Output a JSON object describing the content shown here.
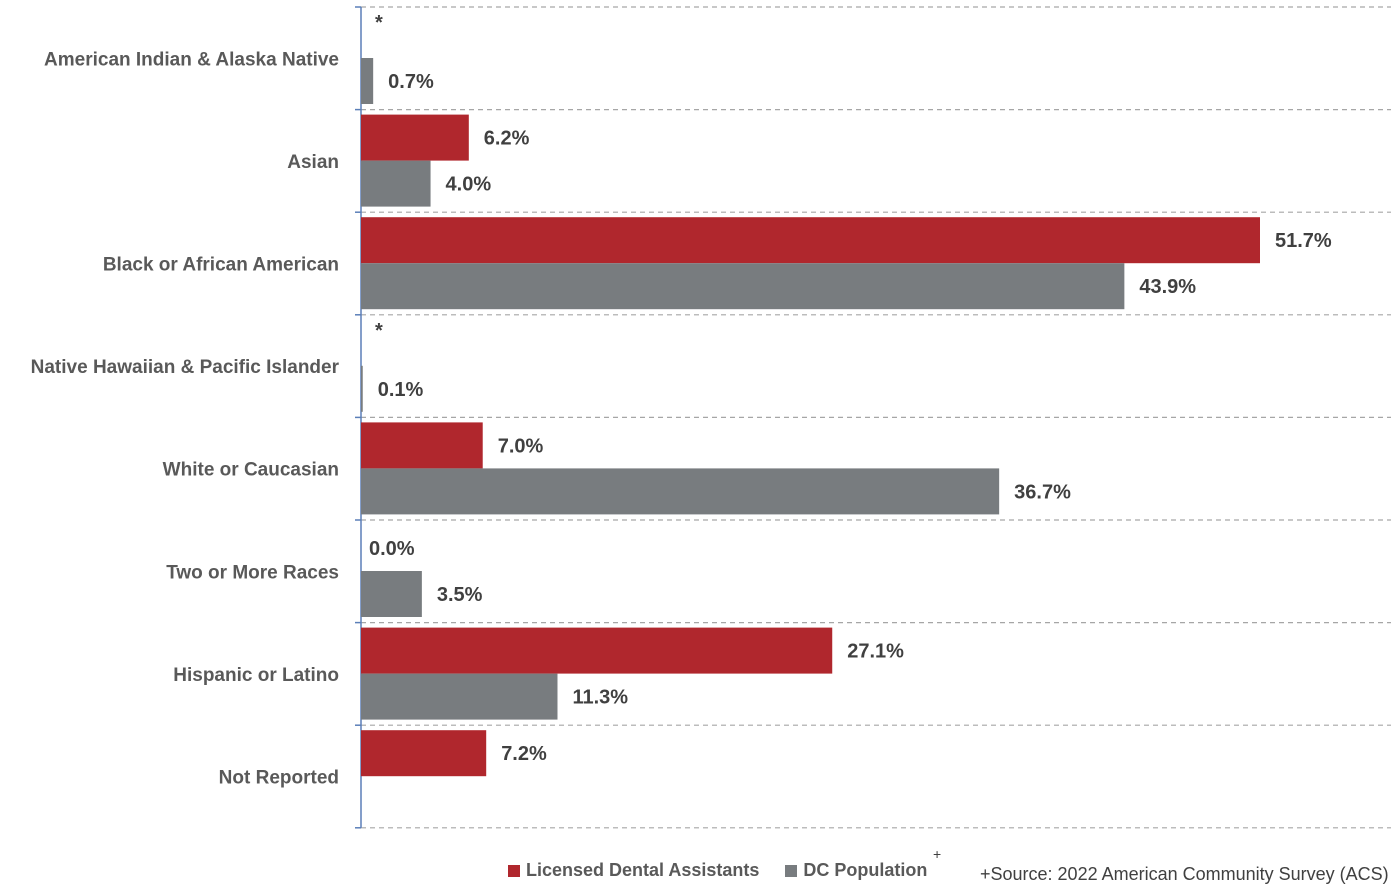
{
  "chart_data": {
    "type": "bar",
    "orientation": "horizontal",
    "categories": [
      "American Indian & Alaska Native",
      "Asian",
      "Black or African American",
      "Native Hawaiian & Pacific Islander",
      "White or Caucasian",
      "Two or More Races",
      "Hispanic or Latino",
      "Not Reported"
    ],
    "series": [
      {
        "name": "Licensed Dental Assistants",
        "color": "#b0272d",
        "values": [
          null,
          6.2,
          51.7,
          null,
          7.0,
          0.0,
          27.1,
          7.2
        ],
        "labels": [
          "*",
          "6.2%",
          "51.7%",
          "*",
          "7.0%",
          "0.0%",
          "27.1%",
          "7.2%"
        ]
      },
      {
        "name": "DC Population",
        "color": "#787c7f",
        "values": [
          0.7,
          4.0,
          43.9,
          0.1,
          36.7,
          3.5,
          11.3,
          null
        ],
        "labels": [
          "0.7%",
          "4.0%",
          "43.9%",
          "0.1%",
          "36.7%",
          "3.5%",
          "11.3%",
          ""
        ]
      }
    ],
    "xlim": [
      0,
      60
    ],
    "grid": "horizontal dashed separators",
    "legend_position": "bottom"
  },
  "legend": {
    "items": [
      {
        "label": "Licensed Dental Assistants",
        "color": "#b0272d"
      },
      {
        "label": "DC Population",
        "color": "#787c7f"
      }
    ],
    "superscript": "+"
  },
  "source_note": "+Source: 2022 American Community Survey (ACS)"
}
